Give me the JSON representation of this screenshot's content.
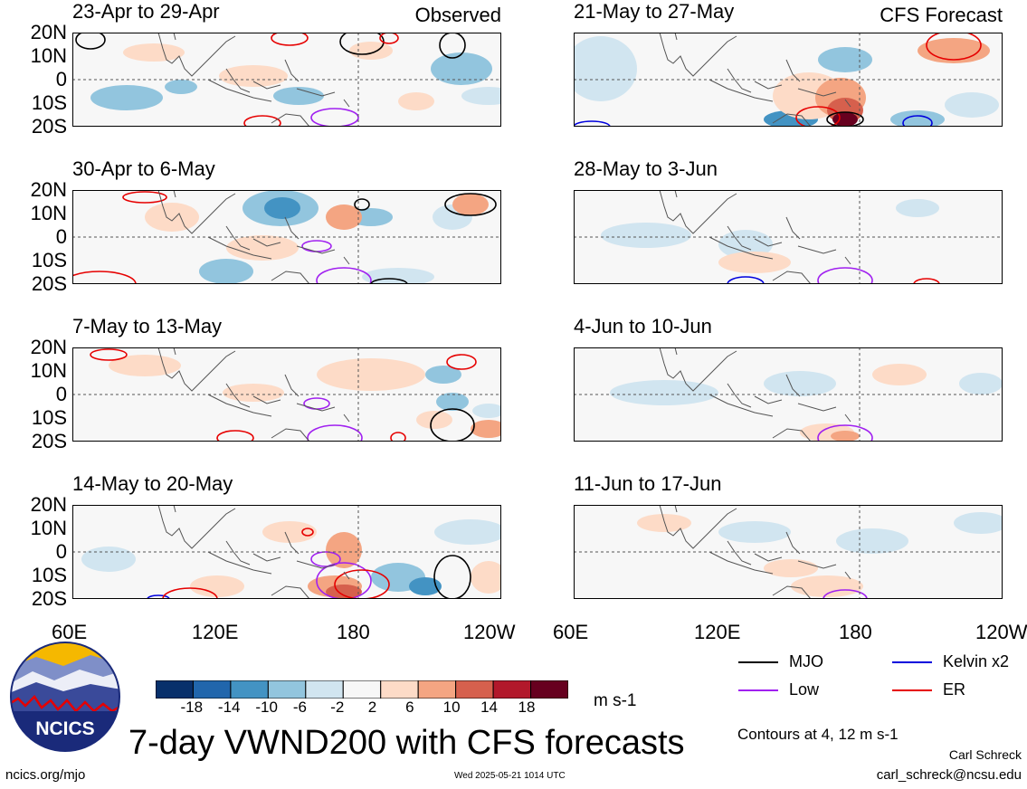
{
  "chart_data": {
    "type": "heatmap",
    "title": "7-day VWND200 with CFS forecasts",
    "units": "m s-1",
    "column_tags": {
      "left": "Observed",
      "right": "CFS Forecast"
    },
    "panels": [
      {
        "title": "23-Apr to 29-Apr",
        "source": "Observed"
      },
      {
        "title": "21-May to 27-May",
        "source": "CFS Forecast"
      },
      {
        "title": "30-Apr to 6-May",
        "source": "Observed"
      },
      {
        "title": "28-May to 3-Jun",
        "source": "CFS Forecast"
      },
      {
        "title": "7-May to 13-May",
        "source": "Observed"
      },
      {
        "title": "4-Jun to 10-Jun",
        "source": "CFS Forecast"
      },
      {
        "title": "14-May to 20-May",
        "source": "Observed"
      },
      {
        "title": "11-Jun to 17-Jun",
        "source": "CFS Forecast"
      }
    ],
    "y_ticks": [
      "20N",
      "10N",
      "0",
      "10S",
      "20S"
    ],
    "x_ticks": [
      "60E",
      "120E",
      "180",
      "120W"
    ],
    "colorbar": {
      "levels": [
        "-18",
        "-14",
        "-10",
        "-6",
        "-2",
        "2",
        "6",
        "10",
        "14",
        "18"
      ],
      "colors": [
        "#08306b",
        "#2166ac",
        "#4393c3",
        "#92c5de",
        "#d1e5f0",
        "#f7f7f7",
        "#fddbc7",
        "#f4a582",
        "#d6604d",
        "#b2182b",
        "#67001f"
      ]
    },
    "contour_legend": [
      {
        "label": "MJO",
        "color": "#000000"
      },
      {
        "label": "Kelvin x2",
        "color": "#0000dd"
      },
      {
        "label": "Low",
        "color": "#a020f0"
      },
      {
        "label": "ER",
        "color": "#e60000"
      }
    ],
    "contour_note": "Contours at 4, 12 m s-1"
  },
  "footer": {
    "logo_text": "NCICS",
    "author": "Carl Schreck",
    "email": "carl_schreck@ncsu.edu",
    "url": "ncics.org/mjo",
    "timestamp": "Wed 2025-05-21 1014 UTC"
  }
}
